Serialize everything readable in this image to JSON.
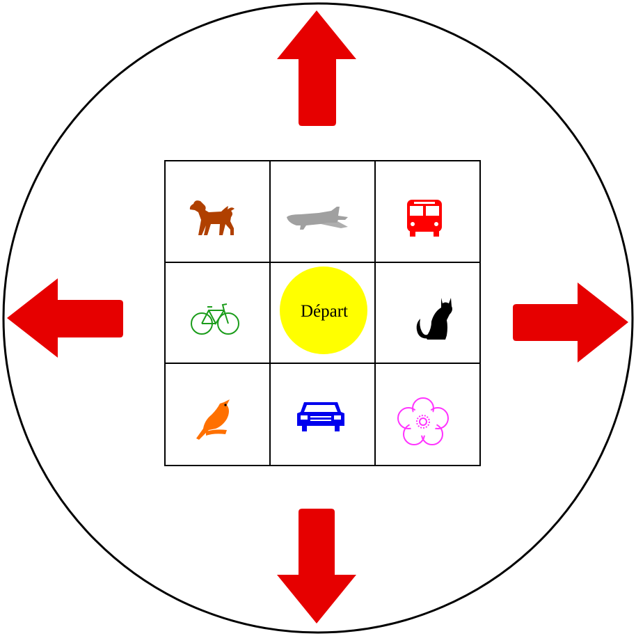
{
  "board": {
    "center_label": "Départ",
    "colors": {
      "arrow": "#e60000",
      "center": "#ffff00",
      "outline": "#000000"
    },
    "cells": [
      {
        "icon": "dog-icon",
        "color": "#b04000"
      },
      {
        "icon": "airplane-icon",
        "color": "#a0a0a0"
      },
      {
        "icon": "bus-icon",
        "color": "#ff0000"
      },
      {
        "icon": "bicycle-icon",
        "color": "#1a9c1a"
      },
      {
        "icon": "start-circle",
        "color": "#ffff00"
      },
      {
        "icon": "cat-icon",
        "color": "#000000"
      },
      {
        "icon": "bird-icon",
        "color": "#ff7000"
      },
      {
        "icon": "car-icon",
        "color": "#0000ee"
      },
      {
        "icon": "flower-icon",
        "color": "#ff33ff"
      }
    ],
    "arrows": [
      "up",
      "down",
      "left",
      "right"
    ]
  }
}
